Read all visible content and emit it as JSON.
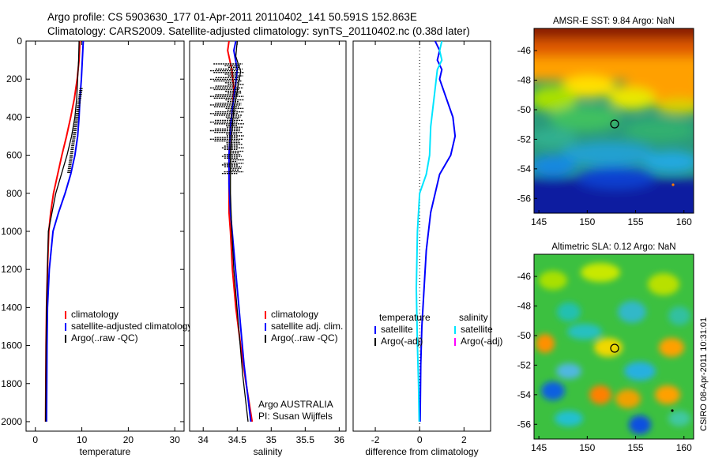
{
  "header": {
    "line1": "Argo profile: CS 5903630_177 01-Apr-2011 20110402_141 50.591S 152.863E",
    "line2": "Climatology: CARS2009. Satellite-adjusted climatology: synTS_20110402.nc (0.38d later)"
  },
  "colors": {
    "climatology": "#ff0000",
    "satellite": "#0000ff",
    "argo": "#000000",
    "satellite_salinity": "#00e5ff",
    "argo_adj_salinity": "#ff00ff"
  },
  "chart_data": [
    {
      "type": "line",
      "xlabel": "temperature",
      "xlim": [
        -2,
        32
      ],
      "xticks": [
        "0",
        "10",
        "20",
        "30"
      ],
      "ylim": [
        2050,
        0
      ],
      "yticks": [
        "0",
        "200",
        "400",
        "600",
        "800",
        "1000",
        "1200",
        "1400",
        "1600",
        "1800",
        "2000"
      ],
      "series": [
        {
          "name": "climatology",
          "color": "#ff0000",
          "x": [
            9.6,
            9.4,
            9.0,
            8.4,
            7.6,
            6.7,
            5.7,
            4.8,
            3.9,
            3.3,
            2.9,
            2.6,
            2.4,
            2.3,
            2.2
          ],
          "y": [
            0,
            100,
            200,
            300,
            400,
            500,
            600,
            700,
            800,
            900,
            1000,
            1200,
            1400,
            1600,
            2000
          ]
        },
        {
          "name": "satellite-adjusted climatology",
          "color": "#0000ff",
          "x": [
            10.3,
            10.1,
            9.9,
            9.6,
            9.4,
            9.1,
            8.5,
            7.6,
            6.4,
            5.0,
            3.8,
            3.0,
            2.6,
            2.5,
            2.4
          ],
          "y": [
            0,
            100,
            200,
            300,
            400,
            500,
            600,
            700,
            800,
            900,
            1000,
            1200,
            1400,
            1600,
            2000
          ]
        },
        {
          "name": "Argo(..raw -QC)",
          "color": "#000000",
          "x": [
            9.4,
            9.3,
            9.1,
            8.9,
            8.5,
            7.8,
            6.8,
            5.6,
            4.4,
            3.6,
            2.8,
            2.4,
            2.3,
            2.2
          ],
          "y": [
            0,
            100,
            200,
            300,
            400,
            500,
            600,
            700,
            800,
            900,
            1000,
            1400,
            1600,
            2000
          ]
        }
      ],
      "legend": {
        "placement": "lower-right",
        "entries": [
          "climatology",
          "satellite-adjusted climatology",
          "Argo(..raw -QC)"
        ]
      }
    },
    {
      "type": "line",
      "xlabel": "salinity",
      "xlim": [
        33.8,
        36.1
      ],
      "xticks": [
        "34",
        "34.5",
        "35",
        "35.5",
        "36"
      ],
      "ylim": [
        2050,
        0
      ],
      "yticks": [],
      "series": [
        {
          "name": "climatology",
          "color": "#ff0000",
          "x": [
            34.38,
            34.36,
            34.42,
            34.45,
            34.43,
            34.4,
            34.38,
            34.38,
            34.38,
            34.4,
            34.43,
            34.48,
            34.55,
            34.63,
            34.72
          ],
          "y": [
            0,
            50,
            150,
            250,
            350,
            450,
            600,
            750,
            900,
            1000,
            1200,
            1400,
            1600,
            1800,
            2000
          ]
        },
        {
          "name": "satellite adj. clim.",
          "color": "#0000ff",
          "x": [
            34.48,
            34.45,
            34.5,
            34.47,
            34.43,
            34.4,
            34.38,
            34.38,
            34.4,
            34.45,
            34.5,
            34.55,
            34.6,
            34.65,
            34.7
          ],
          "y": [
            0,
            50,
            150,
            250,
            350,
            450,
            600,
            750,
            900,
            1100,
            1300,
            1500,
            1700,
            1850,
            2000
          ]
        },
        {
          "name": "Argo(..raw -QC)",
          "color": "#000000",
          "x": [
            34.5,
            34.48,
            34.55,
            34.5,
            34.45,
            34.42,
            34.4,
            34.4,
            34.42,
            34.45,
            34.52,
            34.58,
            34.66
          ],
          "y": [
            0,
            80,
            160,
            260,
            360,
            480,
            600,
            800,
            1000,
            1200,
            1500,
            1750,
            2000
          ]
        }
      ],
      "legend": {
        "placement": "lower-right",
        "entries": [
          "climatology",
          "satellite adj. clim.",
          "Argo(..raw -QC)"
        ]
      },
      "annotations": [
        "Argo AUSTRALIA",
        "PI: Susan Wijffels"
      ]
    },
    {
      "type": "line",
      "xlabel": "difference from climatology",
      "xlim": [
        -3,
        3.2
      ],
      "xticks": [
        "-2",
        "0",
        "2"
      ],
      "ylim": [
        2050,
        0
      ],
      "yticks": [],
      "series": [
        {
          "name": "temperature satellite",
          "color": "#0000ff",
          "x": [
            0.7,
            0.9,
            0.8,
            1.0,
            0.9,
            1.2,
            1.5,
            1.6,
            1.4,
            0.9,
            0.5,
            0.3,
            0.2,
            0.1,
            0.05,
            0.02
          ],
          "y": [
            0,
            50,
            100,
            150,
            200,
            300,
            400,
            500,
            600,
            700,
            900,
            1100,
            1300,
            1500,
            1700,
            2000
          ]
        },
        {
          "name": "salinity satellite",
          "color": "#00e5ff",
          "x": [
            1.0,
            0.9,
            1.0,
            0.8,
            0.7,
            0.6,
            0.5,
            0.45,
            0.3,
            0.0,
            -0.1,
            -0.15,
            -0.1,
            -0.05,
            -0.02
          ],
          "y": [
            0,
            50,
            100,
            150,
            250,
            350,
            450,
            600,
            700,
            800,
            1000,
            1300,
            1600,
            1800,
            2000
          ]
        }
      ],
      "legend": {
        "placement": "lower-center",
        "entries": [
          "temperature",
          "satellite",
          "Argo(-adj)",
          "salinity",
          "satellite",
          "Argo(-adj)"
        ]
      }
    },
    {
      "type": "heatmap",
      "title": "AMSR-E SST: 9.84 Argo: NaN",
      "xlim": [
        144.5,
        161
      ],
      "ylim": [
        -57,
        -44.5
      ],
      "xticks": [
        "145",
        "150",
        "155",
        "160"
      ],
      "yticks": [
        "-46",
        "-48",
        "-50",
        "-52",
        "-54",
        "-56"
      ],
      "marker": {
        "lon": 152.863,
        "lat": -50.591
      }
    },
    {
      "type": "heatmap",
      "title": "Altimetric SLA: 0.12 Argo: NaN",
      "xlim": [
        144.5,
        161
      ],
      "ylim": [
        -57,
        -44.5
      ],
      "xticks": [
        "145",
        "150",
        "155",
        "160"
      ],
      "yticks": [
        "-46",
        "-48",
        "-50",
        "-52",
        "-54",
        "-56"
      ],
      "marker": {
        "lon": 152.863,
        "lat": -50.591
      }
    }
  ],
  "footer": {
    "stamp": "CSIRO 08-Apr-2011 10:31:01"
  }
}
